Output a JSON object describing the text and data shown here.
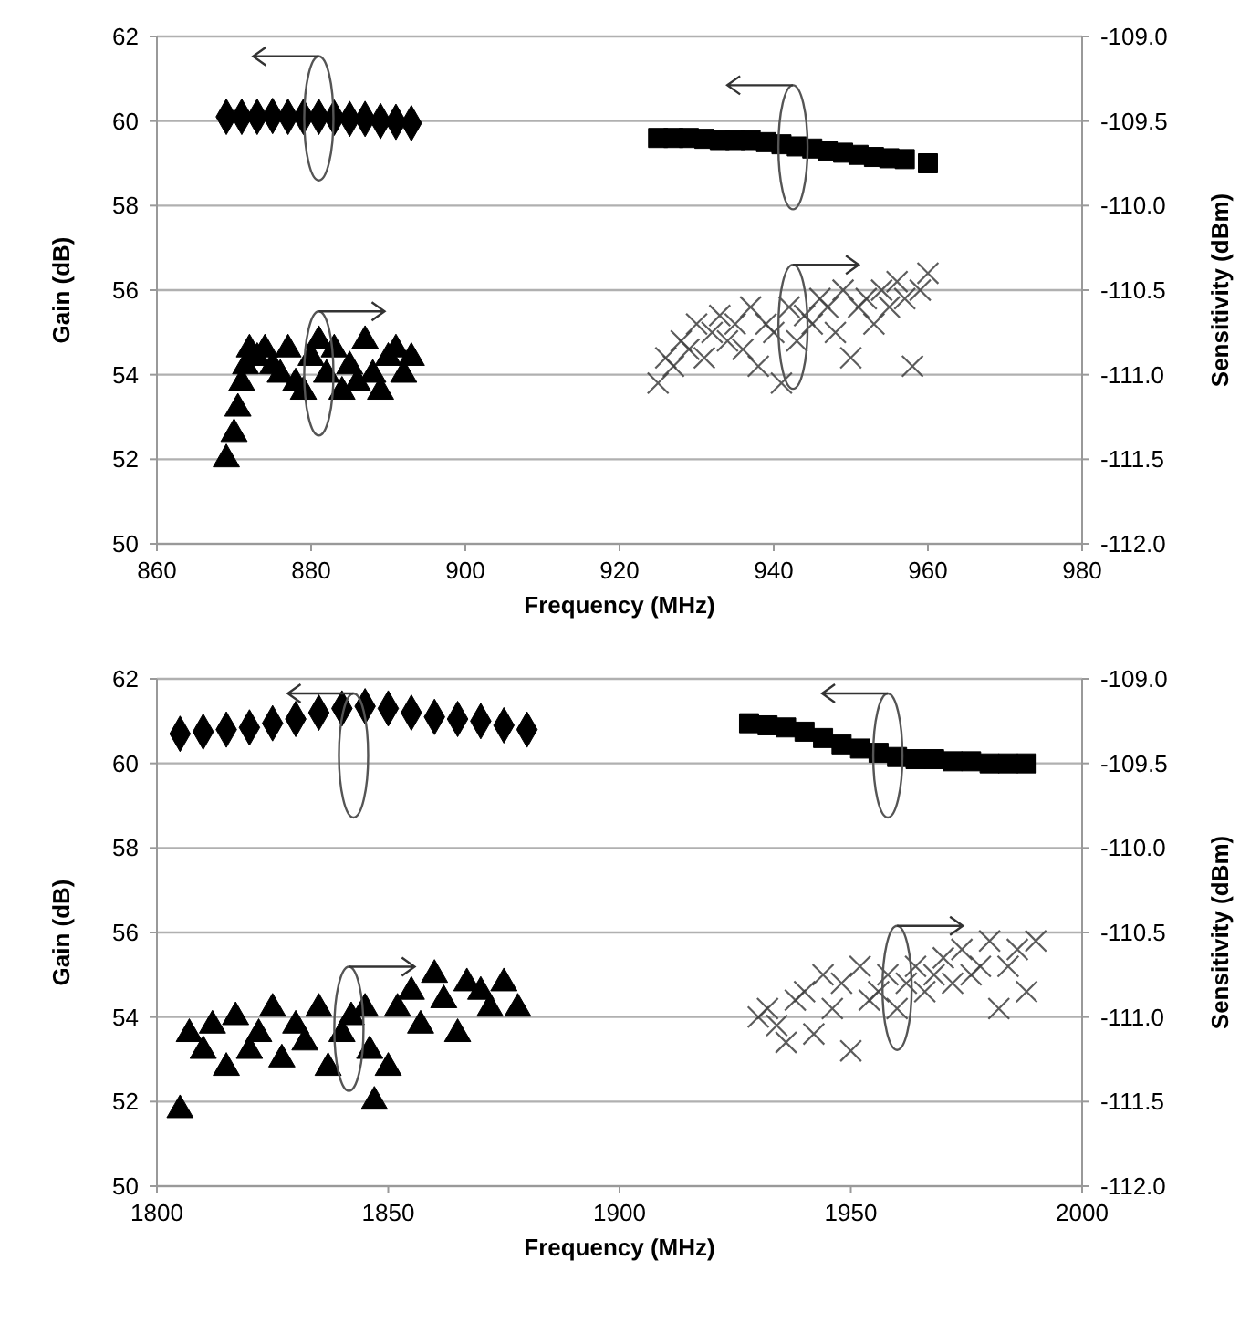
{
  "chart_data": [
    {
      "type": "scatter",
      "xlabel": "Frequency (MHz)",
      "ylabel": "Gain (dB)",
      "y2label": "Sensitivity (dBm)",
      "xlim": [
        860,
        980
      ],
      "xticks": [
        860,
        880,
        900,
        920,
        940,
        960,
        980
      ],
      "ylim": [
        50,
        62
      ],
      "yticks": [
        50,
        52,
        54,
        56,
        58,
        60,
        62
      ],
      "y2lim": [
        -112,
        -109
      ],
      "y2ticks": [
        {
          "value": -112,
          "label": "-112.0"
        },
        {
          "value": -111.5,
          "label": "-111.5"
        },
        {
          "value": -111,
          "label": "-111.0"
        },
        {
          "value": -110.5,
          "label": "-110.5"
        },
        {
          "value": -110,
          "label": "-110.0"
        },
        {
          "value": -109.5,
          "label": "-109.5"
        },
        {
          "value": -109,
          "label": "-109.0"
        }
      ],
      "grid": "y",
      "series": [
        {
          "color": "#000000",
          "marker": "diamond",
          "x": [
            869,
            871,
            873,
            875,
            877,
            879,
            881,
            883,
            885,
            887,
            889,
            891,
            893
          ],
          "values": [
            60.1,
            60.1,
            60.1,
            60.12,
            60.1,
            60.1,
            60.1,
            60.08,
            60.05,
            60.05,
            60.0,
            59.98,
            59.95
          ]
        },
        {
          "color": "#000000",
          "marker": "square",
          "x": [
            925,
            927,
            929,
            931,
            933,
            935,
            937,
            939,
            941,
            943,
            945,
            947,
            949,
            951,
            953,
            955,
            957,
            960
          ],
          "values": [
            59.6,
            59.6,
            59.6,
            59.58,
            59.55,
            59.55,
            59.55,
            59.5,
            59.45,
            59.4,
            59.35,
            59.3,
            59.25,
            59.2,
            59.15,
            59.12,
            59.1,
            59.0
          ]
        },
        {
          "color": "#000000",
          "marker": "triangle",
          "axis": "y2",
          "x": [
            869,
            870,
            870.5,
            871,
            871.5,
            872,
            873,
            874,
            875,
            876,
            877,
            878,
            879,
            880,
            881,
            882,
            883,
            884,
            885,
            886,
            887,
            888,
            889,
            890,
            891,
            892,
            893
          ],
          "values": [
            -111.5,
            -111.35,
            -111.2,
            -111.05,
            -110.95,
            -110.85,
            -110.9,
            -110.85,
            -110.95,
            -111.0,
            -110.85,
            -111.05,
            -111.1,
            -110.9,
            -110.8,
            -111.0,
            -110.85,
            -111.1,
            -110.95,
            -111.05,
            -110.8,
            -111.0,
            -111.1,
            -110.9,
            -110.85,
            -111.0,
            -110.9
          ]
        },
        {
          "color": "#404040",
          "marker": "cross",
          "axis": "y2",
          "x": [
            925,
            926,
            927,
            928,
            929,
            930,
            931,
            932,
            933,
            934,
            935,
            936,
            937,
            938,
            939,
            940,
            941,
            942,
            943,
            944,
            945,
            946,
            947,
            948,
            949,
            950,
            951,
            952,
            953,
            954,
            955,
            956,
            957,
            958,
            959,
            960
          ],
          "values": [
            -111.05,
            -110.9,
            -110.95,
            -110.8,
            -110.85,
            -110.7,
            -110.9,
            -110.75,
            -110.65,
            -110.8,
            -110.7,
            -110.85,
            -110.6,
            -110.95,
            -110.7,
            -110.75,
            -111.05,
            -110.6,
            -110.8,
            -110.65,
            -110.7,
            -110.55,
            -110.6,
            -110.75,
            -110.5,
            -110.9,
            -110.6,
            -110.55,
            -110.7,
            -110.5,
            -110.6,
            -110.45,
            -110.55,
            -110.95,
            -110.5,
            -110.4
          ]
        }
      ]
    },
    {
      "type": "scatter",
      "xlabel": "Frequency (MHz)",
      "ylabel": "Gain (dB)",
      "y2label": "Sensitivity (dBm)",
      "xlim": [
        1800,
        2000
      ],
      "xticks": [
        1800,
        1850,
        1900,
        1950,
        2000
      ],
      "ylim": [
        50,
        62
      ],
      "yticks": [
        50,
        52,
        54,
        56,
        58,
        60,
        62
      ],
      "y2lim": [
        -112,
        -109
      ],
      "y2ticks": [
        {
          "value": -112,
          "label": "-112.0"
        },
        {
          "value": -111.5,
          "label": "-111.5"
        },
        {
          "value": -111,
          "label": "-111.0"
        },
        {
          "value": -110.5,
          "label": "-110.5"
        },
        {
          "value": -110,
          "label": "-110.0"
        },
        {
          "value": -109.5,
          "label": "-109.5"
        },
        {
          "value": -109,
          "label": "-109.0"
        }
      ],
      "grid": "y",
      "series": [
        {
          "color": "#000000",
          "marker": "diamond",
          "x": [
            1805,
            1810,
            1815,
            1820,
            1825,
            1830,
            1835,
            1840,
            1845,
            1850,
            1855,
            1860,
            1865,
            1870,
            1875,
            1880
          ],
          "values": [
            60.7,
            60.75,
            60.8,
            60.85,
            60.95,
            61.05,
            61.2,
            61.3,
            61.35,
            61.3,
            61.2,
            61.1,
            61.05,
            61.0,
            60.9,
            60.8
          ]
        },
        {
          "color": "#000000",
          "marker": "square",
          "x": [
            1928,
            1932,
            1936,
            1940,
            1944,
            1948,
            1952,
            1956,
            1960,
            1964,
            1968,
            1972,
            1976,
            1980,
            1984,
            1988
          ],
          "values": [
            60.95,
            60.9,
            60.85,
            60.75,
            60.6,
            60.45,
            60.35,
            60.25,
            60.15,
            60.1,
            60.1,
            60.05,
            60.05,
            60.0,
            60.0,
            60.0
          ]
        },
        {
          "color": "#000000",
          "marker": "triangle",
          "axis": "y2",
          "x": [
            1805,
            1807,
            1810,
            1812,
            1815,
            1817,
            1820,
            1822,
            1825,
            1827,
            1830,
            1832,
            1835,
            1837,
            1840,
            1842,
            1845,
            1846,
            1847,
            1850,
            1852,
            1855,
            1857,
            1860,
            1862,
            1865,
            1867,
            1870,
            1872,
            1875,
            1878
          ],
          "values": [
            -111.55,
            -111.1,
            -111.2,
            -111.05,
            -111.3,
            -111.0,
            -111.2,
            -111.1,
            -110.95,
            -111.25,
            -111.05,
            -111.15,
            -110.95,
            -111.3,
            -111.1,
            -111.0,
            -110.95,
            -111.2,
            -111.5,
            -111.3,
            -110.95,
            -110.85,
            -111.05,
            -110.75,
            -110.9,
            -111.1,
            -110.8,
            -110.85,
            -110.95,
            -110.8,
            -110.95
          ]
        },
        {
          "color": "#404040",
          "marker": "cross",
          "axis": "y2",
          "x": [
            1930,
            1932,
            1934,
            1936,
            1938,
            1940,
            1942,
            1944,
            1946,
            1948,
            1950,
            1952,
            1954,
            1956,
            1958,
            1960,
            1962,
            1964,
            1966,
            1968,
            1970,
            1972,
            1974,
            1976,
            1978,
            1980,
            1982,
            1984,
            1986,
            1988,
            1990
          ],
          "values": [
            -111.0,
            -110.95,
            -111.05,
            -111.15,
            -110.9,
            -110.85,
            -111.1,
            -110.75,
            -110.95,
            -110.8,
            -111.2,
            -110.7,
            -110.9,
            -110.85,
            -110.75,
            -110.95,
            -110.8,
            -110.7,
            -110.85,
            -110.75,
            -110.65,
            -110.8,
            -110.6,
            -110.75,
            -110.7,
            -110.55,
            -110.95,
            -110.7,
            -110.6,
            -110.85,
            -110.55
          ]
        }
      ]
    }
  ]
}
